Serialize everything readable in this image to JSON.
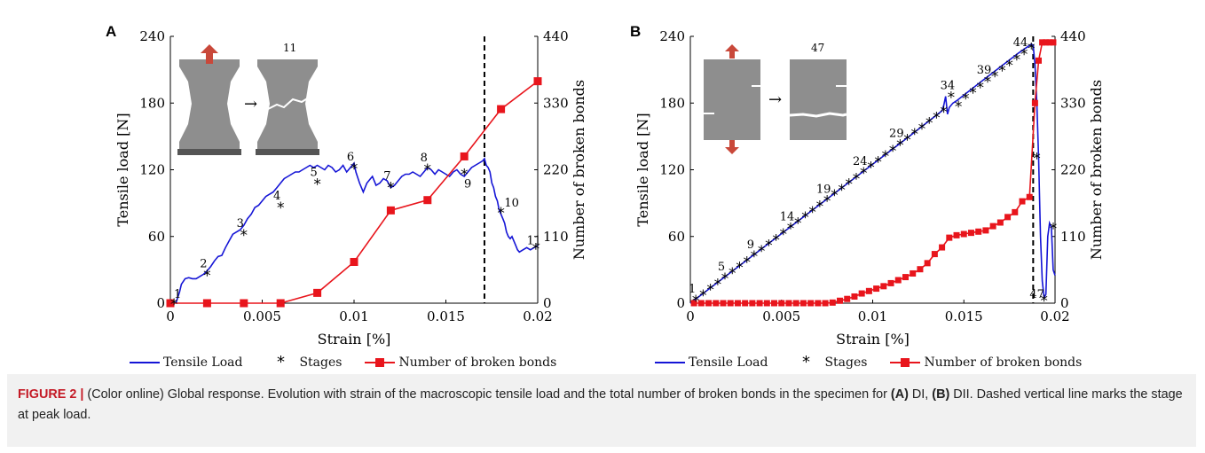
{
  "colors": {
    "load": "#1515d6",
    "bonds": "#e8151c",
    "stages": "#000000",
    "axis": "#000000",
    "caption_label": "#c41a26",
    "caption_bg": "#f1f1f1"
  },
  "chart_data": [
    {
      "panel": "A",
      "type": "line",
      "xlabel": "Strain [%]",
      "ylabel": "Tensile load [N]",
      "y2label": "Number of broken bonds",
      "xlim": [
        0,
        0.02
      ],
      "ylim": [
        0,
        240
      ],
      "y2lim": [
        0,
        440
      ],
      "xticks": [
        "0",
        "0.005",
        "0.01",
        "0.015",
        "0.02"
      ],
      "yticks": [
        "0",
        "60",
        "120",
        "180",
        "240"
      ],
      "y2ticks": [
        "0",
        "110",
        "220",
        "330",
        "440"
      ],
      "peak_strain": 0.0171,
      "inset_stage_label": "11",
      "tensile_load": {
        "name": "Tensile Load",
        "x": [
          0.0003,
          0.0005,
          0.0006,
          0.0008,
          0.001,
          0.0012,
          0.0014,
          0.0016,
          0.0018,
          0.002,
          0.0022,
          0.0024,
          0.0026,
          0.0028,
          0.003,
          0.0032,
          0.0034,
          0.0036,
          0.0038,
          0.004,
          0.0042,
          0.0044,
          0.0046,
          0.0048,
          0.005,
          0.0052,
          0.0054,
          0.0056,
          0.0058,
          0.006,
          0.0062,
          0.0064,
          0.0066,
          0.0068,
          0.007,
          0.0072,
          0.0074,
          0.0076,
          0.0078,
          0.008,
          0.0082,
          0.0084,
          0.0086,
          0.0088,
          0.009,
          0.0092,
          0.0094,
          0.0096,
          0.0098,
          0.01,
          0.0101,
          0.0103,
          0.0105,
          0.0107,
          0.0109,
          0.011,
          0.0112,
          0.0114,
          0.0116,
          0.0118,
          0.012,
          0.0122,
          0.0124,
          0.0126,
          0.0128,
          0.013,
          0.0132,
          0.0134,
          0.0136,
          0.0138,
          0.014,
          0.0142,
          0.0144,
          0.0146,
          0.0148,
          0.015,
          0.0152,
          0.0154,
          0.0156,
          0.0158,
          0.016,
          0.0162,
          0.0164,
          0.0166,
          0.0168,
          0.017,
          0.0171,
          0.0172,
          0.0173,
          0.0174,
          0.0175,
          0.0176,
          0.0177,
          0.0178,
          0.0179,
          0.018,
          0.0181,
          0.0182,
          0.0183,
          0.0184,
          0.0185,
          0.0186,
          0.0187,
          0.0188,
          0.0189,
          0.019,
          0.0192,
          0.0194,
          0.0196,
          0.0198,
          0.02
        ],
        "y": [
          0,
          10,
          17,
          22,
          23,
          22,
          22,
          24,
          26,
          29,
          33,
          38,
          42,
          43,
          50,
          56,
          62,
          64,
          66,
          70,
          76,
          80,
          86,
          88,
          92,
          96,
          98,
          100,
          104,
          108,
          112,
          114,
          116,
          118,
          118,
          120,
          122,
          124,
          122,
          124,
          122,
          120,
          124,
          122,
          118,
          120,
          124,
          118,
          122,
          126,
          118,
          108,
          100,
          108,
          112,
          114,
          106,
          108,
          112,
          110,
          104,
          106,
          110,
          114,
          116,
          116,
          118,
          116,
          114,
          118,
          122,
          120,
          116,
          120,
          118,
          116,
          114,
          118,
          120,
          116,
          114,
          118,
          122,
          124,
          126,
          128,
          130,
          124,
          122,
          118,
          108,
          104,
          96,
          92,
          84,
          80,
          76,
          72,
          64,
          60,
          58,
          60,
          56,
          52,
          48,
          46,
          48,
          50,
          48,
          50,
          52
        ],
        "color": "#1515d6"
      },
      "stages": {
        "name": "Stages",
        "x": [
          0.0002,
          0.002,
          0.004,
          0.006,
          0.008,
          0.01,
          0.012,
          0.014,
          0.016,
          0.018,
          0.0199
        ],
        "y": [
          0,
          26,
          62,
          87,
          108,
          122,
          105,
          121,
          117,
          82,
          50
        ],
        "labels": [
          "1",
          "2",
          "3",
          "4",
          "5",
          "6",
          "7",
          "8",
          "9",
          "10",
          "11"
        ]
      },
      "broken_bonds": {
        "name": "Number of broken bonds",
        "x": [
          0,
          0.002,
          0.004,
          0.006,
          0.008,
          0.01,
          0.012,
          0.014,
          0.016,
          0.018,
          0.02
        ],
        "y": [
          0,
          0,
          0,
          0,
          17,
          68,
          153,
          170,
          242,
          320,
          366
        ],
        "color": "#e8151c"
      }
    },
    {
      "panel": "B",
      "type": "line",
      "xlabel": "Strain [%]",
      "ylabel": "Tensile load [N]",
      "y2label": "Number of broken bonds",
      "xlim": [
        0,
        0.02
      ],
      "ylim": [
        0,
        240
      ],
      "y2lim": [
        0,
        440
      ],
      "xticks": [
        "0",
        "0.005",
        "0.01",
        "0.015",
        "0.02"
      ],
      "yticks": [
        "0",
        "60",
        "120",
        "180",
        "240"
      ],
      "y2ticks": [
        "0",
        "110",
        "220",
        "330",
        "440"
      ],
      "peak_strain": 0.0188,
      "inset_stage_label": "47",
      "tensile_load": {
        "name": "Tensile Load",
        "x": [
          0,
          0.002,
          0.004,
          0.006,
          0.008,
          0.01,
          0.012,
          0.0138,
          0.0139,
          0.014,
          0.0141,
          0.0142,
          0.0144,
          0.0146,
          0.016,
          0.018,
          0.0187,
          0.0188,
          0.0189,
          0.019,
          0.0191,
          0.0192,
          0.0193,
          0.0194,
          0.0195,
          0.0196,
          0.0197,
          0.0198,
          0.0199,
          0.02
        ],
        "y": [
          0,
          25,
          50,
          75,
          100,
          125,
          150,
          173,
          178,
          186,
          170,
          176,
          180,
          182,
          200,
          225,
          233,
          232,
          215,
          180,
          130,
          60,
          20,
          5,
          8,
          60,
          72,
          68,
          30,
          25
        ],
        "color": "#1515d6"
      },
      "stages": {
        "name": "Stages",
        "x": [
          0.0003,
          0.0007,
          0.0011,
          0.0015,
          0.0019,
          0.0023,
          0.0027,
          0.0031,
          0.0035,
          0.0039,
          0.0043,
          0.0047,
          0.0051,
          0.0055,
          0.0059,
          0.0063,
          0.0067,
          0.0071,
          0.0075,
          0.0079,
          0.0083,
          0.0087,
          0.0091,
          0.0095,
          0.0099,
          0.0103,
          0.0107,
          0.0111,
          0.0115,
          0.0119,
          0.0123,
          0.0127,
          0.0131,
          0.0135,
          0.0139,
          0.0143,
          0.0147,
          0.0151,
          0.0155,
          0.0159,
          0.0163,
          0.0167,
          0.0171,
          0.0175,
          0.0179,
          0.0183,
          0.0187,
          0.019,
          0.0194,
          0.0199
        ],
        "y": [
          3,
          8,
          13,
          18,
          23,
          28,
          33,
          38,
          43,
          48,
          53,
          58,
          63,
          68,
          73,
          78,
          83,
          88,
          93,
          98,
          103,
          108,
          113,
          118,
          123,
          128,
          133,
          138,
          143,
          148,
          153,
          158,
          163,
          168,
          173,
          186,
          178,
          185,
          190,
          195,
          200,
          205,
          210,
          215,
          220,
          225,
          230,
          131,
          3,
          68
        ],
        "labels": [
          "1",
          "5",
          "9",
          "14",
          "19",
          "24",
          "29",
          "34",
          "39",
          "44",
          "47"
        ],
        "labeled_indices": [
          0,
          4,
          8,
          13,
          18,
          23,
          28,
          35,
          40,
          45,
          48
        ]
      },
      "broken_bonds": {
        "name": "Number of broken bonds",
        "x": [
          0.0002,
          0.0006,
          0.001,
          0.0014,
          0.0018,
          0.0022,
          0.0026,
          0.003,
          0.0034,
          0.0038,
          0.0042,
          0.0046,
          0.005,
          0.0054,
          0.0058,
          0.0062,
          0.0066,
          0.007,
          0.0074,
          0.0078,
          0.0082,
          0.0086,
          0.009,
          0.0094,
          0.0098,
          0.0102,
          0.0106,
          0.011,
          0.0114,
          0.0118,
          0.0122,
          0.0126,
          0.013,
          0.0134,
          0.0138,
          0.0142,
          0.0146,
          0.015,
          0.0154,
          0.0158,
          0.0162,
          0.0166,
          0.017,
          0.0174,
          0.0178,
          0.0182,
          0.0186,
          0.0189,
          0.0191,
          0.0193,
          0.0195,
          0.0197,
          0.0199
        ],
        "y": [
          0,
          0,
          0,
          0,
          0,
          0,
          0,
          0,
          0,
          0,
          0,
          0,
          0,
          0,
          0,
          0,
          0,
          0,
          0,
          1,
          4,
          7,
          11,
          16,
          20,
          24,
          28,
          33,
          38,
          43,
          49,
          56,
          66,
          81,
          92,
          108,
          112,
          114,
          116,
          118,
          120,
          127,
          133,
          142,
          150,
          168,
          175,
          330,
          400,
          430,
          430,
          430,
          430
        ],
        "color": "#e8151c"
      }
    }
  ],
  "panels": {
    "a": {
      "letter": "A",
      "legend": [
        "Tensile Load",
        "Stages",
        "Number of broken bonds"
      ]
    },
    "b": {
      "letter": "B",
      "legend": [
        "Tensile Load",
        "Stages",
        "Number of broken bonds"
      ]
    }
  },
  "caption": {
    "label": "FIGURE 2 |",
    "text1": " (Color online) Global response. Evolution with strain of the macroscopic tensile load and the total number of broken bonds in the specimen for ",
    "bold_a": "(A)",
    "text_a": " DI, ",
    "bold_b": "(B)",
    "text2": " DII. Dashed vertical line marks the stage at peak load."
  }
}
